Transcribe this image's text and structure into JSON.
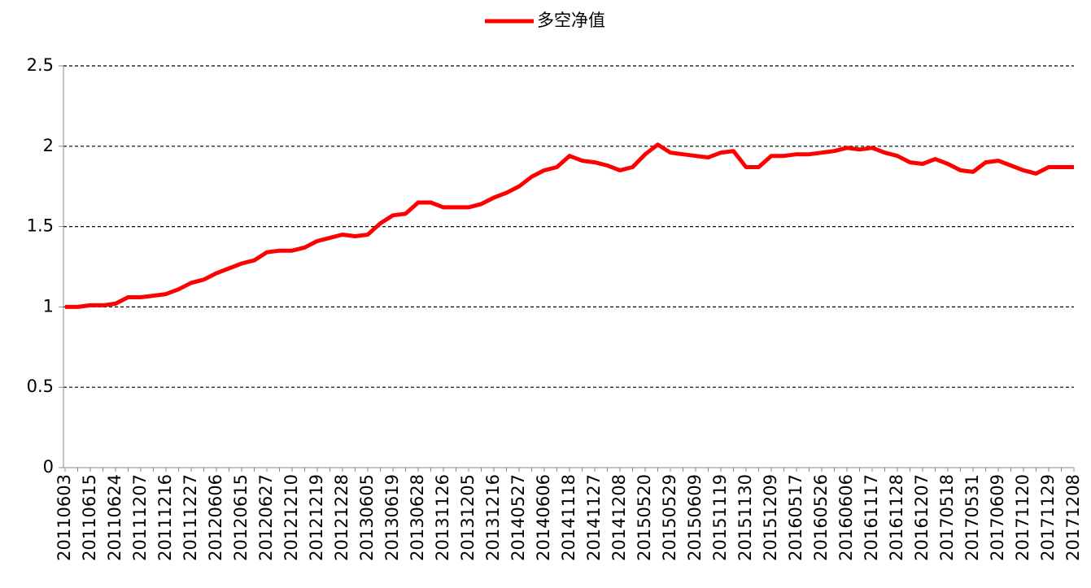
{
  "chart_data": {
    "type": "line",
    "categories": [
      "20110603",
      null,
      "20110615",
      null,
      "20110624",
      null,
      "20111207",
      null,
      "20111216",
      null,
      "20111227",
      null,
      "20120606",
      null,
      "20120615",
      null,
      "20120627",
      null,
      "20121210",
      null,
      "20121219",
      null,
      "20121228",
      null,
      "20130605",
      null,
      "20130619",
      null,
      "20130628",
      null,
      "20131126",
      null,
      "20131205",
      null,
      "20131216",
      null,
      "20140527",
      null,
      "20140606",
      null,
      "20141118",
      null,
      "20141127",
      null,
      "20141208",
      null,
      "20150520",
      null,
      "20150529",
      null,
      "20150609",
      null,
      "20151119",
      null,
      "20151130",
      null,
      "20151209",
      null,
      "20160517",
      null,
      "20160526",
      null,
      "20160606",
      null,
      "20161117",
      null,
      "20161128",
      null,
      "20161207",
      null,
      "20170518",
      null,
      "20170531",
      null,
      "20170609",
      null,
      "20171120",
      null,
      "20171129",
      null,
      "20171208"
    ],
    "series": [
      {
        "name": "多空净值",
        "color": "#ff0000",
        "values": [
          1.0,
          1.0,
          1.01,
          1.01,
          1.02,
          1.06,
          1.06,
          1.07,
          1.08,
          1.11,
          1.15,
          1.17,
          1.21,
          1.24,
          1.27,
          1.29,
          1.34,
          1.35,
          1.35,
          1.37,
          1.41,
          1.43,
          1.45,
          1.44,
          1.45,
          1.52,
          1.57,
          1.58,
          1.65,
          1.65,
          1.62,
          1.62,
          1.62,
          1.64,
          1.68,
          1.71,
          1.75,
          1.81,
          1.85,
          1.87,
          1.94,
          1.91,
          1.9,
          1.88,
          1.85,
          1.87,
          1.95,
          2.01,
          1.96,
          1.95,
          1.94,
          1.93,
          1.96,
          1.97,
          1.87,
          1.87,
          1.94,
          1.94,
          1.95,
          1.95,
          1.96,
          1.97,
          1.99,
          1.98,
          1.99,
          1.96,
          1.94,
          1.9,
          1.89,
          1.92,
          1.89,
          1.85,
          1.84,
          1.9,
          1.91,
          1.88,
          1.85,
          1.83,
          1.87,
          1.87,
          1.87
        ]
      }
    ],
    "ylim": [
      0,
      2.5
    ],
    "yticks": [
      0,
      0.5,
      1,
      1.5,
      2,
      2.5
    ],
    "grid": true,
    "legend": "top"
  }
}
